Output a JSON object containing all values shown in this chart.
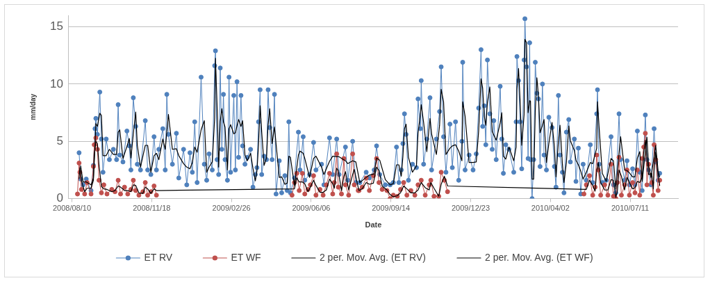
{
  "chart_data": {
    "type": "line",
    "xlabel": "Date",
    "ylabel": "mm/day",
    "xlim": [
      "2008-08-06",
      "2010-09-09"
    ],
    "xticks": [
      {
        "value": "2008-08-10",
        "label": "2008/08/10"
      },
      {
        "value": "2008-11-18",
        "label": "2008/11/18"
      },
      {
        "value": "2009-02-26",
        "label": "2009/02/26"
      },
      {
        "value": "2009-06-06",
        "label": "2009/06/06"
      },
      {
        "value": "2009-09-14",
        "label": "2009/09/14"
      },
      {
        "value": "2009-12-23",
        "label": "2009/12/23"
      },
      {
        "value": "2010-04-02",
        "label": "2010/04/02"
      },
      {
        "value": "2010-07-11",
        "label": "2010/07/11"
      }
    ],
    "ylim": [
      0,
      16
    ],
    "yticks": [
      0,
      5,
      10,
      15
    ],
    "grid": "y",
    "legend": "bottom",
    "series": [
      {
        "name": "ET RV",
        "color": "#4f81bd",
        "marker": "circle",
        "x": [
          "2008-08-19",
          "2008-08-21",
          "2008-08-24",
          "2008-08-28",
          "2008-09-03",
          "2008-09-06",
          "2008-09-08",
          "2008-09-09",
          "2008-09-11",
          "2008-09-14",
          "2008-09-16",
          "2008-09-18",
          "2008-09-22",
          "2008-09-26",
          "2008-10-01",
          "2008-10-05",
          "2008-10-07",
          "2008-10-09",
          "2008-10-13",
          "2008-10-18",
          "2008-10-21",
          "2008-10-23",
          "2008-10-26",
          "2008-10-29",
          "2008-10-31",
          "2008-11-04",
          "2008-11-10",
          "2008-11-13",
          "2008-11-17",
          "2008-11-21",
          "2008-11-24",
          "2008-11-27",
          "2008-12-02",
          "2008-12-05",
          "2008-12-07",
          "2008-12-09",
          "2008-12-14",
          "2008-12-19",
          "2008-12-22",
          "2008-12-28",
          "2009-01-01",
          "2009-01-05",
          "2009-01-08",
          "2009-01-11",
          "2009-01-14",
          "2009-01-19",
          "2009-01-23",
          "2009-01-26",
          "2009-01-29",
          "2009-02-02",
          "2009-02-05",
          "2009-02-06",
          "2009-02-08",
          "2009-02-10",
          "2009-02-12",
          "2009-02-14",
          "2009-02-16",
          "2009-02-18",
          "2009-02-21",
          "2009-02-23",
          "2009-02-25",
          "2009-03-01",
          "2009-03-03",
          "2009-03-05",
          "2009-03-07",
          "2009-03-10",
          "2009-03-12",
          "2009-03-15",
          "2009-03-18",
          "2009-03-22",
          "2009-03-25",
          "2009-03-28",
          "2009-03-30",
          "2009-04-01",
          "2009-04-03",
          "2009-04-05",
          "2009-04-08",
          "2009-04-11",
          "2009-04-13",
          "2009-04-15",
          "2009-04-18",
          "2009-04-21",
          "2009-04-23",
          "2009-04-27",
          "2009-04-30",
          "2009-05-04",
          "2009-05-07",
          "2009-05-09",
          "2009-05-11",
          "2009-05-16",
          "2009-05-21",
          "2009-05-23",
          "2009-05-27",
          "2009-05-29",
          "2009-06-04",
          "2009-06-09",
          "2009-06-12",
          "2009-06-19",
          "2009-06-22",
          "2009-06-29",
          "2009-07-03",
          "2009-07-08",
          "2009-07-11",
          "2009-07-19",
          "2009-07-22",
          "2009-07-28",
          "2009-08-01",
          "2009-08-06",
          "2009-08-14",
          "2009-08-18",
          "2009-08-24",
          "2009-08-27",
          "2009-08-31",
          "2009-09-07",
          "2009-09-13",
          "2009-09-17",
          "2009-09-21",
          "2009-09-24",
          "2009-09-27",
          "2009-09-29",
          "2009-10-01",
          "2009-10-03",
          "2009-10-06",
          "2009-10-11",
          "2009-10-16",
          "2009-10-18",
          "2009-10-21",
          "2009-10-22",
          "2009-10-25",
          "2009-10-29",
          "2009-11-02",
          "2009-11-04",
          "2009-11-10",
          "2009-11-14",
          "2009-11-16",
          "2009-11-19",
          "2009-11-22",
          "2009-11-27",
          "2009-11-30",
          "2009-12-04",
          "2009-12-08",
          "2009-12-12",
          "2009-12-13",
          "2009-12-16",
          "2009-12-21",
          "2009-12-26",
          "2009-12-30",
          "2010-01-02",
          "2010-01-05",
          "2010-01-07",
          "2010-01-09",
          "2010-01-11",
          "2010-01-13",
          "2010-01-16",
          "2010-01-19",
          "2010-01-21",
          "2010-01-24",
          "2010-01-29",
          "2010-01-31",
          "2010-02-02",
          "2010-02-05",
          "2010-02-09",
          "2010-02-15",
          "2010-02-18",
          "2010-02-19",
          "2010-02-21",
          "2010-02-23",
          "2010-02-25",
          "2010-02-28",
          "2010-03-01",
          "2010-03-03",
          "2010-03-05",
          "2010-03-07",
          "2010-03-08",
          "2010-03-10",
          "2010-03-12",
          "2010-03-14",
          "2010-03-16",
          "2010-03-18",
          "2010-03-20",
          "2010-03-23",
          "2010-03-25",
          "2010-03-28",
          "2010-03-31",
          "2010-04-04",
          "2010-04-07",
          "2010-04-09",
          "2010-04-12",
          "2010-04-14",
          "2010-04-17",
          "2010-04-19",
          "2010-04-22",
          "2010-04-25",
          "2010-04-27",
          "2010-05-02",
          "2010-05-04",
          "2010-05-07",
          "2010-05-10",
          "2010-05-13",
          "2010-05-17",
          "2010-05-22",
          "2010-05-25",
          "2010-05-30",
          "2010-05-31",
          "2010-06-02",
          "2010-06-06",
          "2010-06-11",
          "2010-06-17",
          "2010-06-20",
          "2010-06-23",
          "2010-06-27",
          "2010-06-29",
          "2010-07-04",
          "2010-07-07",
          "2010-07-10",
          "2010-07-14",
          "2010-07-17",
          "2010-07-20",
          "2010-07-23",
          "2010-07-26",
          "2010-07-30",
          "2010-08-01",
          "2010-08-03",
          "2010-08-06",
          "2010-08-10",
          "2010-08-12",
          "2010-08-15",
          "2010-08-17"
        ],
        "values": [
          4.0,
          1.7,
          1.2,
          1.7,
          0.7,
          2.9,
          6.1,
          7.0,
          5.6,
          9.3,
          5.2,
          2.3,
          5.2,
          3.4,
          4.3,
          3.4,
          8.2,
          3.8,
          3.2,
          5.9,
          4.6,
          2.5,
          8.8,
          6.3,
          3.0,
          2.5,
          6.8,
          2.5,
          2.1,
          5.4,
          2.5,
          4.3,
          6.1,
          2.5,
          9.1,
          5.6,
          3.0,
          5.7,
          1.8,
          4.3,
          1.2,
          4.0,
          2.3,
          6.7,
          1.4,
          10.6,
          3.0,
          1.6,
          3.9,
          2.5,
          11.6,
          12.9,
          3.4,
          2.1,
          11.4,
          4.3,
          9.1,
          3.4,
          1.6,
          10.6,
          2.3,
          9.0,
          2.5,
          10.2,
          3.6,
          9.0,
          4.6,
          3.0,
          3.6,
          4.3,
          1.0,
          2.1,
          2.7,
          6.7,
          9.5,
          2.1,
          3.7,
          3.4,
          9.5,
          6.2,
          3.4,
          9.1,
          0.4,
          3.3,
          0.5,
          2.0,
          0.7,
          6.7,
          0.5,
          1.8,
          5.8,
          2.5,
          5.4,
          1.6,
          2.1,
          4.9,
          2.5,
          3.0,
          1.2,
          5.3,
          2.1,
          5.2,
          2.1,
          4.5,
          1.6,
          5.0,
          1.4,
          1.4,
          2.3,
          1.8,
          2.5,
          4.6,
          2.1,
          1.2,
          1.2,
          1.4,
          4.5,
          1.4,
          2.5,
          4.8,
          7.4,
          5.6,
          1.6,
          3.0,
          2.7,
          8.7,
          6.1,
          10.3,
          3.0,
          5.2,
          8.8,
          2.5,
          5.2,
          7.6,
          11.5,
          5.4,
          2.3,
          6.5,
          2.7,
          6.7,
          1.6,
          5.0,
          11.9,
          2.5,
          3.8,
          2.5,
          3.9,
          7.9,
          13.0,
          6.3,
          8.1,
          4.7,
          12.1,
          7.4,
          4.3,
          6.8,
          3.4,
          9.8,
          5.2,
          2.2,
          4.7,
          4.3,
          2.3,
          6.7,
          12.4,
          10.3,
          6.7,
          2.6,
          12.1,
          15.7,
          11.5,
          3.5,
          13.6,
          3.4,
          0.0,
          3.4,
          11.9,
          9.2,
          8.7,
          2.8,
          10.0,
          3.8,
          2.5,
          7.1,
          6.2,
          2.8,
          1.0,
          9.0,
          3.8,
          2.3,
          0.5,
          5.8,
          6.9,
          3.2,
          5.2,
          1.5,
          4.4,
          0.4,
          3.0,
          1.6,
          4.7,
          1.4,
          7.4,
          9.5,
          3.0,
          1.4,
          1.6,
          5.4,
          1.2,
          0.5,
          7.4,
          3.4,
          1.6,
          3.3,
          1.2,
          2.6,
          1.2,
          5.9,
          2.3,
          0.7,
          7.3,
          3.4,
          2.5,
          1.2,
          6.1,
          3.2,
          1.6,
          2.2
        ]
      },
      {
        "name": "ET WF",
        "color": "#c0504d",
        "marker": "circle",
        "x": [
          "2008-08-17",
          "2008-08-19",
          "2008-08-20",
          "2008-08-22",
          "2008-08-26",
          "2008-08-29",
          "2008-09-03",
          "2008-09-06",
          "2008-09-07",
          "2008-09-09",
          "2008-09-11",
          "2008-09-13",
          "2008-09-16",
          "2008-09-19",
          "2008-09-23",
          "2008-09-29",
          "2008-10-03",
          "2008-10-07",
          "2008-10-10",
          "2008-10-15",
          "2008-10-19",
          "2008-10-23",
          "2008-10-26",
          "2008-10-29",
          "2008-11-02",
          "2008-11-07",
          "2008-11-10",
          "2008-11-13",
          "2008-11-17",
          "2008-11-21",
          "2008-11-24",
          "2009-02-15",
          "2009-05-13",
          "2009-05-16",
          "2009-05-19",
          "2009-05-22",
          "2009-05-26",
          "2009-05-29",
          "2009-06-02",
          "2009-06-05",
          "2009-06-09",
          "2009-06-12",
          "2009-06-17",
          "2009-06-21",
          "2009-06-25",
          "2009-06-29",
          "2009-07-03",
          "2009-07-05",
          "2009-07-08",
          "2009-07-10",
          "2009-07-14",
          "2009-07-17",
          "2009-07-19",
          "2009-07-23",
          "2009-07-28",
          "2009-07-30",
          "2009-08-04",
          "2009-08-05",
          "2009-08-09",
          "2009-08-14",
          "2009-08-18",
          "2009-08-23",
          "2009-08-27",
          "2009-08-30",
          "2009-09-03",
          "2009-09-09",
          "2009-09-13",
          "2009-09-17",
          "2009-09-22",
          "2009-09-26",
          "2009-09-30",
          "2009-10-04",
          "2009-10-09",
          "2009-10-14",
          "2009-10-18",
          "2009-10-22",
          "2009-10-27",
          "2009-11-01",
          "2009-11-03",
          "2009-11-07",
          "2009-11-13",
          "2009-11-16",
          "2009-11-20",
          "2009-11-24",
          "2010-02-15",
          "2010-05-14",
          "2010-05-17",
          "2010-05-21",
          "2010-05-25",
          "2010-05-28",
          "2010-05-30",
          "2010-06-01",
          "2010-06-04",
          "2010-06-09",
          "2010-06-13",
          "2010-06-17",
          "2010-06-20",
          "2010-06-23",
          "2010-06-25",
          "2010-06-27",
          "2010-06-30",
          "2010-07-04",
          "2010-07-07",
          "2010-07-10",
          "2010-07-14",
          "2010-07-17",
          "2010-07-20",
          "2010-07-23",
          "2010-07-26",
          "2010-07-28",
          "2010-07-30",
          "2010-08-01",
          "2010-08-03",
          "2010-08-07",
          "2010-08-09",
          "2010-08-10",
          "2010-08-12",
          "2010-08-15",
          "2010-08-17"
        ],
        "values": [
          0.4,
          3.1,
          2.3,
          0.8,
          0.4,
          1.4,
          0.4,
          2.8,
          4.7,
          5.3,
          4.3,
          1.6,
          0.5,
          1.2,
          0.4,
          0.8,
          0.6,
          1.6,
          0.4,
          1.0,
          0.4,
          0.8,
          1.6,
          0.7,
          0.3,
          0.6,
          1.4,
          0.3,
          0.6,
          1.1,
          0.3,
          null,
          0.3,
          1.4,
          2.2,
          0.7,
          2.2,
          0.4,
          0.8,
          1.2,
          2.0,
          0.3,
          0.8,
          0.3,
          1.2,
          2.2,
          0.4,
          1.4,
          3.9,
          1.0,
          0.4,
          3.5,
          1.2,
          0.3,
          3.9,
          1.2,
          0.7,
          0.7,
          1.0,
          1.8,
          0.7,
          2.0,
          3.5,
          1.4,
          0.8,
          0.7,
          0.0,
          0.3,
          0.2,
          0.8,
          1.4,
          0.3,
          0.7,
          0.3,
          1.2,
          1.6,
          0.3,
          1.2,
          1.6,
          0.2,
          0.2,
          2.3,
          1.6,
          0.6,
          null,
          0.4,
          1.2,
          2.0,
          0.3,
          1.0,
          3.8,
          2.5,
          0.3,
          1.2,
          0.3,
          3.0,
          0.2,
          0.0,
          1.4,
          3.6,
          0.3,
          1.2,
          2.5,
          0.3,
          1.4,
          0.5,
          2.5,
          0.3,
          3.5,
          4.5,
          5.7,
          1.2,
          3.0,
          1.4,
          0.3,
          4.7,
          3.4,
          0.7,
          1.6
        ]
      },
      {
        "name": "2 per. Mov. Avg. (ET RV)",
        "color": "#000000",
        "marker": "none",
        "x": [
          "2008-08-21",
          "2008-08-24",
          "2008-08-28",
          "2008-09-03",
          "2008-09-06",
          "2008-09-08",
          "2008-09-09",
          "2008-09-11",
          "2008-09-14",
          "2008-09-16",
          "2008-09-18",
          "2008-09-22",
          "2008-09-26",
          "2008-10-01",
          "2008-10-05",
          "2008-10-07",
          "2008-10-09",
          "2008-10-13",
          "2008-10-18",
          "2008-10-21",
          "2008-10-23",
          "2008-10-26",
          "2008-10-29",
          "2008-10-31",
          "2008-11-04",
          "2008-11-10",
          "2008-11-13",
          "2008-11-17",
          "2008-11-21",
          "2008-11-24",
          "2008-11-27",
          "2008-12-02",
          "2008-12-05",
          "2008-12-07",
          "2008-12-09",
          "2008-12-14",
          "2008-12-19",
          "2008-12-22",
          "2008-12-28",
          "2009-01-01",
          "2009-01-05",
          "2009-01-08",
          "2009-01-11",
          "2009-01-14",
          "2009-01-19",
          "2009-01-23",
          "2009-01-26",
          "2009-01-29",
          "2009-02-02",
          "2009-02-05",
          "2009-02-06",
          "2009-02-08",
          "2009-02-10",
          "2009-02-12",
          "2009-02-14",
          "2009-02-16",
          "2009-02-18",
          "2009-02-21",
          "2009-02-23",
          "2009-02-25",
          "2009-03-01",
          "2009-03-03",
          "2009-03-05",
          "2009-03-07",
          "2009-03-10",
          "2009-03-12",
          "2009-03-15",
          "2009-03-18",
          "2009-03-22",
          "2009-03-25",
          "2009-03-28",
          "2009-03-30",
          "2009-04-01",
          "2009-04-03",
          "2009-04-05",
          "2009-04-08",
          "2009-04-11",
          "2009-04-13",
          "2009-04-15",
          "2009-04-18",
          "2009-04-21",
          "2009-04-23",
          "2009-04-27",
          "2009-04-30",
          "2009-05-04",
          "2009-05-07",
          "2009-05-09",
          "2009-05-11",
          "2009-05-16",
          "2009-05-21",
          "2009-05-23",
          "2009-05-27",
          "2009-05-29",
          "2009-06-04",
          "2009-06-09",
          "2009-06-12",
          "2009-06-19",
          "2009-06-22",
          "2009-06-29",
          "2009-07-03",
          "2009-07-08",
          "2009-07-11",
          "2009-07-19",
          "2009-07-22",
          "2009-07-28",
          "2009-08-01",
          "2009-08-06",
          "2009-08-14",
          "2009-08-18",
          "2009-08-24",
          "2009-08-27",
          "2009-08-31",
          "2009-09-07",
          "2009-09-13",
          "2009-09-17",
          "2009-09-21",
          "2009-09-24",
          "2009-09-27",
          "2009-09-29",
          "2009-10-01",
          "2009-10-03",
          "2009-10-06",
          "2009-10-11",
          "2009-10-16",
          "2009-10-18",
          "2009-10-21",
          "2009-10-22",
          "2009-10-25",
          "2009-10-29",
          "2009-11-02",
          "2009-11-04",
          "2009-11-10",
          "2009-11-14",
          "2009-11-16",
          "2009-11-19",
          "2009-11-22",
          "2009-11-27",
          "2009-11-30",
          "2009-12-04",
          "2009-12-08",
          "2009-12-12",
          "2009-12-13",
          "2009-12-16",
          "2009-12-21",
          "2009-12-26",
          "2009-12-30",
          "2010-01-02",
          "2010-01-05",
          "2010-01-07",
          "2010-01-09",
          "2010-01-11",
          "2010-01-13",
          "2010-01-16",
          "2010-01-19",
          "2010-01-21",
          "2010-01-24",
          "2010-01-29",
          "2010-01-31",
          "2010-02-02",
          "2010-02-05",
          "2010-02-09",
          "2010-02-15",
          "2010-02-18",
          "2010-02-19",
          "2010-02-21",
          "2010-02-23",
          "2010-02-25",
          "2010-02-28",
          "2010-03-01",
          "2010-03-03",
          "2010-03-05",
          "2010-03-07",
          "2010-03-08",
          "2010-03-10",
          "2010-03-12",
          "2010-03-14",
          "2010-03-16",
          "2010-03-18",
          "2010-03-20",
          "2010-03-23",
          "2010-03-25",
          "2010-03-28",
          "2010-03-31",
          "2010-04-04",
          "2010-04-07",
          "2010-04-09",
          "2010-04-12",
          "2010-04-14",
          "2010-04-17",
          "2010-04-19",
          "2010-04-22",
          "2010-04-25",
          "2010-04-27",
          "2010-05-02",
          "2010-05-04",
          "2010-05-07",
          "2010-05-10",
          "2010-05-13",
          "2010-05-17",
          "2010-05-22",
          "2010-05-25",
          "2010-05-30",
          "2010-05-31",
          "2010-06-02",
          "2010-06-06",
          "2010-06-11",
          "2010-06-17",
          "2010-06-20",
          "2010-06-23",
          "2010-06-27",
          "2010-06-29",
          "2010-07-04",
          "2010-07-07",
          "2010-07-10",
          "2010-07-14",
          "2010-07-17",
          "2010-07-20",
          "2010-07-23",
          "2010-07-26",
          "2010-07-30",
          "2010-08-01",
          "2010-08-03",
          "2010-08-06",
          "2010-08-10",
          "2010-08-12",
          "2010-08-15",
          "2010-08-17"
        ],
        "values": [
          2.85,
          1.45,
          1.45,
          1.2,
          1.8,
          4.5,
          6.55,
          6.3,
          7.45,
          7.25,
          3.75,
          3.75,
          4.3,
          3.85,
          3.85,
          5.8,
          6.0,
          3.5,
          4.55,
          5.25,
          3.55,
          5.65,
          7.55,
          4.65,
          2.75,
          4.65,
          4.65,
          2.3,
          3.75,
          3.95,
          3.4,
          5.2,
          4.3,
          5.8,
          7.35,
          4.3,
          4.35,
          3.75,
          3.05,
          2.75,
          2.6,
          3.15,
          4.5,
          4.05,
          6.0,
          6.8,
          2.3,
          2.75,
          3.2,
          7.05,
          12.25,
          8.15,
          2.75,
          6.75,
          7.85,
          6.7,
          6.25,
          2.5,
          6.1,
          6.45,
          5.65,
          5.75,
          6.35,
          6.9,
          6.3,
          6.8,
          3.8,
          3.3,
          3.95,
          2.65,
          1.55,
          2.4,
          4.7,
          8.1,
          5.8,
          2.9,
          3.55,
          6.45,
          7.85,
          4.8,
          6.25,
          4.75,
          1.85,
          1.9,
          1.25,
          1.35,
          3.7,
          3.6,
          1.15,
          3.8,
          4.15,
          3.95,
          3.5,
          1.85,
          3.5,
          3.7,
          2.75,
          2.1,
          3.25,
          3.7,
          3.65,
          3.65,
          3.3,
          3.05,
          3.3,
          3.2,
          1.4,
          1.85,
          2.05,
          2.15,
          3.55,
          3.35,
          1.65,
          1.2,
          1.3,
          2.95,
          2.95,
          1.95,
          3.65,
          6.1,
          6.5,
          3.6,
          2.3,
          2.85,
          5.7,
          7.4,
          8.2,
          6.65,
          4.1,
          7.0,
          5.65,
          3.85,
          6.4,
          9.55,
          8.45,
          3.85,
          4.4,
          4.6,
          4.7,
          4.15,
          3.3,
          8.45,
          7.2,
          3.15,
          3.15,
          3.2,
          5.9,
          10.45,
          9.65,
          7.2,
          6.4,
          8.4,
          9.75,
          5.85,
          5.55,
          5.1,
          6.6,
          7.5,
          3.7,
          3.45,
          4.5,
          3.3,
          4.5,
          9.55,
          11.35,
          8.5,
          4.65,
          7.35,
          13.9,
          13.6,
          7.5,
          8.55,
          8.5,
          1.7,
          1.7,
          7.65,
          10.55,
          8.95,
          5.75,
          6.4,
          6.9,
          3.15,
          4.8,
          6.65,
          4.5,
          1.9,
          5.0,
          6.4,
          3.05,
          1.4,
          3.15,
          6.35,
          5.05,
          4.2,
          3.35,
          2.95,
          2.4,
          1.7,
          2.3,
          3.15,
          3.05,
          4.4,
          8.45,
          6.25,
          2.2,
          1.5,
          3.5,
          3.3,
          0.85,
          3.95,
          5.4,
          2.5,
          2.45,
          2.25,
          1.9,
          1.9,
          3.55,
          4.1,
          1.5,
          4.0,
          5.35,
          2.95,
          1.85,
          3.65,
          4.65,
          2.4,
          1.9
        ]
      },
      {
        "name": "2 per. Mov. Avg. (ET WF)",
        "color": "#000000",
        "marker": "none",
        "x": [
          "2008-08-19",
          "2008-08-20",
          "2008-08-22",
          "2008-08-26",
          "2008-08-29",
          "2008-09-03",
          "2008-09-06",
          "2008-09-07",
          "2008-09-09",
          "2008-09-11",
          "2008-09-13",
          "2008-09-16",
          "2008-09-19",
          "2008-09-23",
          "2008-09-29",
          "2008-10-03",
          "2008-10-07",
          "2008-10-10",
          "2008-10-15",
          "2008-10-19",
          "2008-10-23",
          "2008-10-26",
          "2008-10-29",
          "2008-11-02",
          "2008-11-07",
          "2008-11-10",
          "2008-11-13",
          "2008-11-17",
          "2008-11-21",
          "2008-11-24",
          "2009-05-16",
          "2009-05-19",
          "2009-05-22",
          "2009-05-26",
          "2009-05-29",
          "2009-06-02",
          "2009-06-05",
          "2009-06-09",
          "2009-06-12",
          "2009-06-17",
          "2009-06-21",
          "2009-06-25",
          "2009-06-29",
          "2009-07-03",
          "2009-07-05",
          "2009-07-08",
          "2009-07-10",
          "2009-07-14",
          "2009-07-17",
          "2009-07-19",
          "2009-07-23",
          "2009-07-28",
          "2009-07-30",
          "2009-08-04",
          "2009-08-05",
          "2009-08-09",
          "2009-08-14",
          "2009-08-18",
          "2009-08-23",
          "2009-08-27",
          "2009-08-30",
          "2009-09-03",
          "2009-09-09",
          "2009-09-13",
          "2009-09-17",
          "2009-09-22",
          "2009-09-26",
          "2009-09-30",
          "2009-10-04",
          "2009-10-09",
          "2009-10-14",
          "2009-10-18",
          "2009-10-22",
          "2009-10-27",
          "2009-11-01",
          "2009-11-03",
          "2009-11-07",
          "2009-11-13",
          "2009-11-16",
          "2009-11-20",
          "2009-11-24",
          "2010-05-17",
          "2010-05-21",
          "2010-05-25",
          "2010-05-28",
          "2010-05-30",
          "2010-06-01",
          "2010-06-04",
          "2010-06-09",
          "2010-06-13",
          "2010-06-17",
          "2010-06-20",
          "2010-06-23",
          "2010-06-25",
          "2010-06-27",
          "2010-06-30",
          "2010-07-04",
          "2010-07-07",
          "2010-07-10",
          "2010-07-14",
          "2010-07-17",
          "2010-07-20",
          "2010-07-23",
          "2010-07-26",
          "2010-07-28",
          "2010-07-30",
          "2010-08-01",
          "2010-08-03",
          "2010-08-07",
          "2010-08-09",
          "2010-08-10",
          "2010-08-12",
          "2010-08-15",
          "2010-08-17"
        ],
        "values": [
          1.75,
          2.7,
          1.55,
          0.6,
          0.9,
          0.9,
          1.6,
          3.75,
          5.0,
          4.8,
          2.95,
          1.05,
          0.85,
          0.8,
          0.6,
          0.7,
          1.1,
          1.0,
          0.7,
          0.7,
          0.6,
          1.2,
          1.15,
          0.5,
          0.45,
          1.0,
          0.85,
          0.45,
          0.85,
          0.7,
          0.85,
          1.8,
          1.45,
          1.45,
          1.3,
          0.6,
          1.0,
          1.6,
          1.15,
          0.55,
          0.55,
          0.75,
          1.7,
          1.3,
          0.9,
          2.65,
          2.45,
          0.7,
          1.95,
          2.35,
          0.75,
          2.1,
          2.55,
          0.95,
          0.7,
          0.85,
          1.4,
          1.25,
          1.35,
          2.75,
          2.45,
          1.1,
          0.75,
          0.35,
          0.15,
          0.25,
          0.5,
          1.1,
          0.85,
          0.5,
          0.5,
          0.75,
          1.4,
          0.95,
          0.75,
          1.4,
          0.9,
          0.2,
          1.25,
          1.95,
          1.1,
          0.8,
          1.6,
          1.15,
          0.65,
          2.4,
          3.15,
          1.4,
          0.75,
          0.75,
          1.65,
          1.6,
          0.1,
          0.7,
          2.5,
          1.95,
          0.75,
          1.85,
          1.4,
          0.85,
          0.95,
          1.5,
          1.4,
          1.9,
          4.0,
          5.1,
          3.45,
          2.1,
          2.2,
          0.85,
          2.5,
          4.05,
          2.05,
          1.15
        ]
      }
    ]
  }
}
